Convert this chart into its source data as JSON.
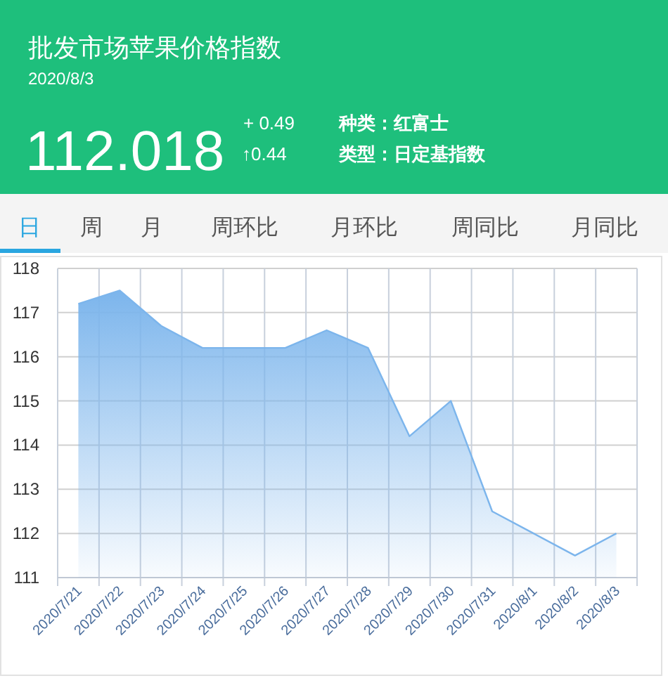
{
  "chart_data": [
    {
      "type": "other",
      "title": "批发市场苹果价格指数",
      "subtitle": "2020/8/3",
      "annotations": [
        "112.018",
        "+ 0.49",
        "↑0.44",
        "种类：红富士",
        "类型：日定基指数"
      ]
    },
    {
      "type": "other",
      "annotations": [
        "日",
        "周",
        "月",
        "周环比",
        "月环比",
        "周同比",
        "月同比"
      ]
    },
    {
      "type": "area",
      "categories": [
        "2020/7/21",
        "2020/7/22",
        "2020/7/23",
        "2020/7/24",
        "2020/7/25",
        "2020/7/26",
        "2020/7/27",
        "2020/7/28",
        "2020/7/29",
        "2020/7/30",
        "2020/7/31",
        "2020/8/1",
        "2020/8/2",
        "2020/8/3"
      ],
      "series": [
        {
          "color": "#7cb5ec",
          "values": [
            117.2,
            117.5,
            116.7,
            116.2,
            116.2,
            116.2,
            116.6,
            116.2,
            114.2,
            115.0,
            112.5,
            112.0,
            111.5,
            112.0
          ]
        }
      ],
      "ylim": [
        111,
        118
      ],
      "yticks": [
        111,
        112,
        113,
        114,
        115,
        116,
        117,
        118
      ],
      "grid": true
    }
  ]
}
